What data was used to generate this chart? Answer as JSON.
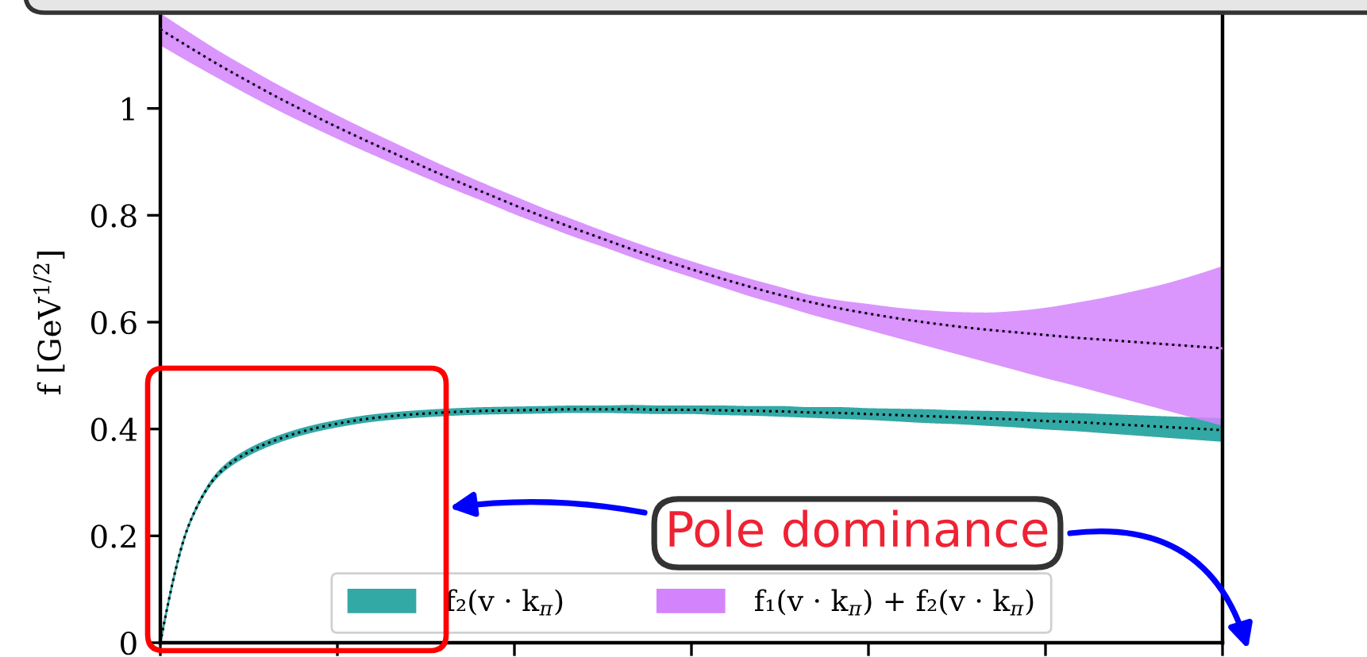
{
  "chart_data": {
    "type": "line",
    "ylabel": "f [GeV$^{1/2}$]",
    "categories": [
      null,
      null,
      null,
      null,
      null,
      null,
      null,
      null,
      null,
      null,
      null,
      null,
      null,
      null,
      null,
      null,
      null,
      null,
      null,
      null,
      null,
      null,
      null,
      null,
      null,
      null,
      null,
      null,
      null,
      null,
      null,
      null,
      null,
      null,
      null,
      null,
      null
    ],
    "ylim": [
      0,
      1.2
    ],
    "yticks": [
      0,
      0.2,
      0.4,
      0.6,
      0.8,
      1
    ],
    "tick_labels": "y",
    "legend": "bottom",
    "annotations": [
      "Pole dominance"
    ],
    "series": [
      {
        "name": "f₂(v · k$_{π}$)",
        "color": "#33a9a6",
        "values": [
          0,
          0.225,
          0.318,
          0.357,
          0.381,
          0.398,
          0.41,
          0.419,
          0.425,
          0.429,
          0.432,
          0.434,
          0.435,
          0.436,
          0.437,
          0.437,
          0.437,
          0.436,
          0.436,
          0.435,
          0.434,
          0.433,
          0.431,
          0.43,
          0.428,
          0.426,
          0.424,
          0.422,
          0.42,
          0.418,
          0.415,
          0.413,
          0.41,
          0.407,
          0.404,
          0.401,
          0.398
        ],
        "lower": [
          0,
          0.221,
          0.312,
          0.35,
          0.374,
          0.391,
          0.403,
          0.412,
          0.418,
          0.422,
          0.425,
          0.427,
          0.428,
          0.429,
          0.43,
          0.43,
          0.429,
          0.428,
          0.428,
          0.426,
          0.425,
          0.423,
          0.421,
          0.419,
          0.417,
          0.414,
          0.411,
          0.409,
          0.406,
          0.403,
          0.399,
          0.396,
          0.392,
          0.388,
          0.384,
          0.38,
          0.376
        ],
        "upper": [
          0,
          0.229,
          0.324,
          0.364,
          0.388,
          0.405,
          0.417,
          0.426,
          0.432,
          0.436,
          0.439,
          0.441,
          0.442,
          0.443,
          0.444,
          0.444,
          0.445,
          0.444,
          0.444,
          0.444,
          0.443,
          0.443,
          0.441,
          0.441,
          0.439,
          0.438,
          0.437,
          0.435,
          0.434,
          0.433,
          0.431,
          0.43,
          0.428,
          0.426,
          0.424,
          0.422,
          0.42
        ]
      },
      {
        "name": "f₁(v · k$_{π}$) + f₂(v · k$_{π}$)",
        "color": "#d384fc",
        "values": [
          1.148,
          1.114,
          1.081,
          1.05,
          1.02,
          0.992,
          0.965,
          0.939,
          0.914,
          0.889,
          0.865,
          0.842,
          0.819,
          0.797,
          0.776,
          0.756,
          0.736,
          0.717,
          0.699,
          0.682,
          0.666,
          0.651,
          0.638,
          0.626,
          0.616,
          0.607,
          0.599,
          0.592,
          0.586,
          0.581,
          0.576,
          0.571,
          0.567,
          0.563,
          0.559,
          0.555,
          0.551
        ],
        "lower": [
          1.118,
          1.086,
          1.055,
          1.025,
          0.996,
          0.969,
          0.943,
          0.918,
          0.894,
          0.87,
          0.847,
          0.825,
          0.802,
          0.781,
          0.76,
          0.741,
          0.721,
          0.702,
          0.684,
          0.666,
          0.648,
          0.632,
          0.615,
          0.6,
          0.585,
          0.57,
          0.555,
          0.54,
          0.525,
          0.51,
          0.495,
          0.481,
          0.466,
          0.451,
          0.436,
          0.421,
          0.406
        ],
        "upper": [
          1.178,
          1.142,
          1.107,
          1.075,
          1.044,
          1.015,
          0.987,
          0.96,
          0.934,
          0.908,
          0.883,
          0.859,
          0.836,
          0.813,
          0.792,
          0.771,
          0.751,
          0.732,
          0.714,
          0.697,
          0.681,
          0.666,
          0.651,
          0.641,
          0.634,
          0.627,
          0.622,
          0.619,
          0.618,
          0.621,
          0.627,
          0.636,
          0.646,
          0.658,
          0.671,
          0.687,
          0.705
        ]
      },
      {
        "color": "#000000",
        "line_style": "dotted",
        "values": [
          0,
          0.225,
          0.318,
          0.357,
          0.381,
          0.398,
          0.41,
          0.419,
          0.425,
          0.429,
          0.432,
          0.434,
          0.435,
          0.436,
          0.437,
          0.437,
          0.437,
          0.436,
          0.436,
          0.435,
          0.434,
          0.433,
          0.431,
          0.43,
          0.428,
          0.426,
          0.424,
          0.422,
          0.42,
          0.418,
          0.415,
          0.413,
          0.41,
          0.407,
          0.404,
          0.401,
          0.398
        ]
      },
      {
        "color": "#000000",
        "line_style": "dotted",
        "values": [
          1.148,
          1.114,
          1.081,
          1.05,
          1.02,
          0.992,
          0.965,
          0.939,
          0.914,
          0.889,
          0.865,
          0.842,
          0.819,
          0.797,
          0.776,
          0.756,
          0.736,
          0.717,
          0.699,
          0.682,
          0.666,
          0.651,
          0.638,
          0.626,
          0.616,
          0.607,
          0.599,
          0.592,
          0.586,
          0.581,
          0.576,
          0.571,
          0.567,
          0.563,
          0.559,
          0.555,
          0.551
        ]
      }
    ]
  }
}
